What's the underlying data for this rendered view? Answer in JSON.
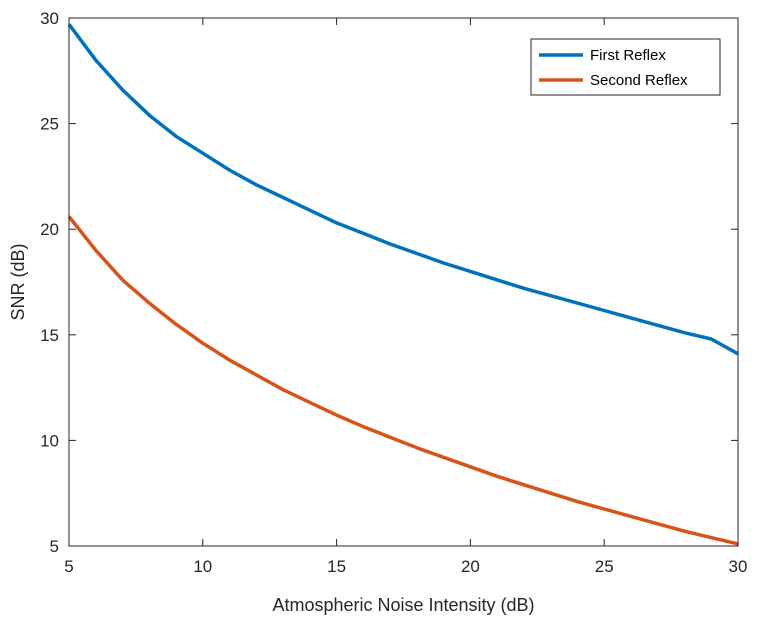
{
  "chart_data": {
    "type": "line",
    "title": "",
    "xlabel": "Atmospheric Noise Intensity (dB)",
    "ylabel": "SNR (dB)",
    "xlim": [
      5,
      30
    ],
    "ylim": [
      5,
      30
    ],
    "xticks": [
      "5",
      "10",
      "15",
      "20",
      "25",
      "30"
    ],
    "yticks": [
      "5",
      "10",
      "15",
      "20",
      "25",
      "30"
    ],
    "grid": false,
    "legend_position": "top-right",
    "x": [
      5,
      6,
      7,
      8,
      9,
      10,
      11,
      12,
      13,
      14,
      15,
      16,
      17,
      18,
      19,
      20,
      21,
      22,
      23,
      24,
      25,
      26,
      27,
      28,
      29,
      30
    ],
    "series": [
      {
        "name": "First Reflex",
        "color": "#0072BD",
        "values": [
          29.7,
          28.0,
          26.6,
          25.4,
          24.4,
          23.6,
          22.8,
          22.1,
          21.5,
          20.9,
          20.3,
          19.8,
          19.3,
          18.85,
          18.4,
          18.0,
          17.6,
          17.2,
          16.85,
          16.5,
          16.15,
          15.8,
          15.45,
          15.1,
          14.8,
          14.1
        ]
      },
      {
        "name": "Second Reflex",
        "color": "#D95319",
        "values": [
          20.6,
          19.0,
          17.6,
          16.5,
          15.5,
          14.6,
          13.8,
          13.1,
          12.4,
          11.8,
          11.2,
          10.65,
          10.15,
          9.65,
          9.2,
          8.75,
          8.3,
          7.9,
          7.5,
          7.1,
          6.75,
          6.4,
          6.05,
          5.7,
          5.4,
          5.1
        ]
      }
    ]
  }
}
